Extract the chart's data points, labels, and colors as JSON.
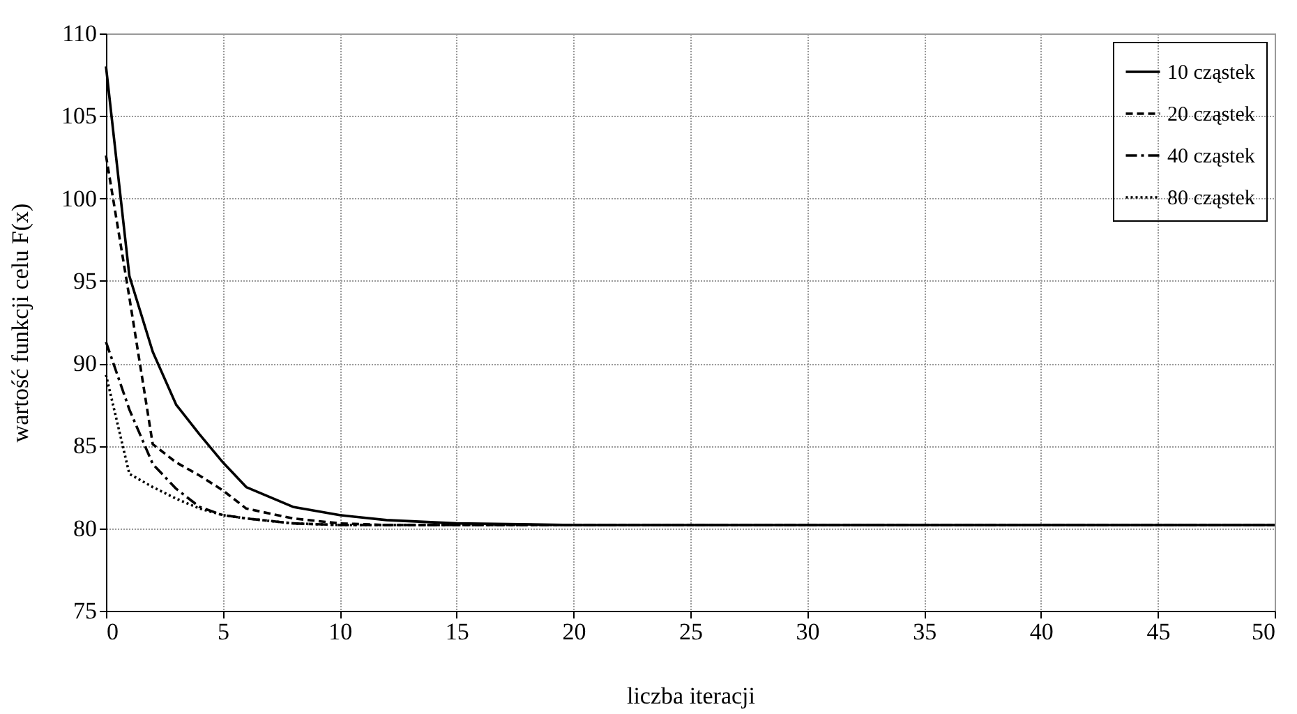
{
  "chart_data": {
    "type": "line",
    "xlabel": "liczba iteracji",
    "ylabel": "wartość funkcji celu F(x)",
    "xlim": [
      0,
      50
    ],
    "xticks": [
      0,
      5,
      10,
      15,
      20,
      25,
      30,
      35,
      40,
      45,
      50
    ],
    "ylim": [
      75,
      110
    ],
    "yticks": [
      75,
      80,
      85,
      90,
      95,
      100,
      105,
      110
    ],
    "grid": true,
    "legend": "top right",
    "marker": "none",
    "series": [
      {
        "name": "10 cząstek",
        "color": "#000000",
        "line_style": "solid",
        "x": [
          0,
          1,
          2,
          3,
          4,
          5,
          6,
          8,
          10,
          12,
          15,
          20,
          30,
          40,
          50
        ],
        "values": [
          108.0,
          95.3,
          90.7,
          87.5,
          85.7,
          84.0,
          82.5,
          81.3,
          80.8,
          80.5,
          80.3,
          80.2,
          80.2,
          80.2,
          80.2
        ]
      },
      {
        "name": "20 cząstek",
        "color": "#000000",
        "line_style": "dashed",
        "x": [
          0,
          1,
          2,
          3,
          4,
          5,
          6,
          8,
          10,
          12,
          15,
          20,
          30,
          40,
          50
        ],
        "values": [
          102.6,
          94.0,
          85.1,
          84.0,
          83.2,
          82.3,
          81.2,
          80.6,
          80.3,
          80.2,
          80.2,
          80.2,
          80.2,
          80.2,
          80.2
        ]
      },
      {
        "name": "40 cząstek",
        "color": "#000000",
        "line_style": "dashdot",
        "x": [
          0,
          1,
          2,
          3,
          4,
          5,
          6,
          8,
          10,
          12,
          15,
          20,
          30,
          40,
          50
        ],
        "values": [
          91.3,
          87.2,
          83.9,
          82.4,
          81.3,
          80.8,
          80.6,
          80.3,
          80.2,
          80.2,
          80.2,
          80.2,
          80.2,
          80.2,
          80.2
        ]
      },
      {
        "name": "80 cząstek",
        "color": "#000000",
        "line_style": "dotted",
        "x": [
          0,
          1,
          2,
          3,
          4,
          5,
          6,
          8,
          10,
          12,
          15,
          20,
          30,
          40,
          50
        ],
        "values": [
          89.3,
          83.3,
          82.5,
          81.8,
          81.2,
          80.8,
          80.6,
          80.3,
          80.2,
          80.2,
          80.2,
          80.2,
          80.2,
          80.2,
          80.2
        ]
      }
    ]
  }
}
